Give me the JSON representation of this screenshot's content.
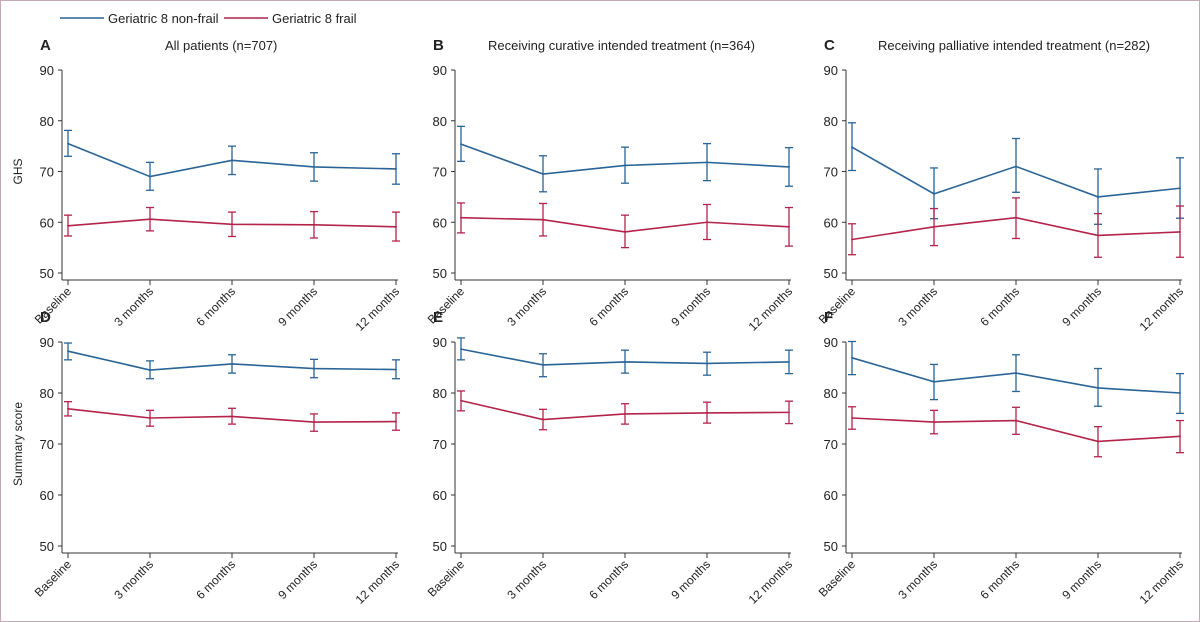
{
  "legend": [
    {
      "name": "Geriatric 8 non-frail",
      "color": "#2a6496"
    },
    {
      "name": "Geriatric 8 frail",
      "color": "#b3234b"
    }
  ],
  "chart_data": [
    {
      "type": "line",
      "panel": "A",
      "subtitle": "All patients (n=707)",
      "categories": [
        "Baseline",
        "3 months",
        "6 months",
        "9 months",
        "12 months"
      ],
      "ylabel": "GHS",
      "ylim": [
        50,
        90
      ],
      "yticks": [
        50,
        60,
        70,
        80,
        90
      ],
      "series": [
        {
          "name": "Geriatric 8 non-frail",
          "values": [
            75.5,
            69.0,
            72.2,
            70.9,
            70.5
          ],
          "lower": [
            73.0,
            66.3,
            69.4,
            68.1,
            67.5
          ],
          "upper": [
            78.1,
            71.8,
            75.0,
            73.7,
            73.5
          ]
        },
        {
          "name": "Geriatric 8 frail",
          "values": [
            59.3,
            60.6,
            59.6,
            59.5,
            59.1
          ],
          "lower": [
            57.3,
            58.3,
            57.2,
            56.9,
            56.3
          ],
          "upper": [
            61.4,
            62.9,
            62.0,
            62.1,
            62.0
          ]
        }
      ]
    },
    {
      "type": "line",
      "panel": "B",
      "subtitle": "Receiving curative intended treatment (n=364)",
      "categories": [
        "Baseline",
        "3 months",
        "6 months",
        "9 months",
        "12 months"
      ],
      "ylabel": "",
      "ylim": [
        50,
        90
      ],
      "yticks": [
        50,
        60,
        70,
        80,
        90
      ],
      "series": [
        {
          "name": "Geriatric 8 non-frail",
          "values": [
            75.4,
            69.5,
            71.2,
            71.8,
            70.9
          ],
          "lower": [
            72.0,
            66.0,
            67.7,
            68.2,
            67.1
          ],
          "upper": [
            78.9,
            73.1,
            74.8,
            75.5,
            74.7
          ]
        },
        {
          "name": "Geriatric 8 frail",
          "values": [
            60.9,
            60.5,
            58.1,
            60.0,
            59.1
          ],
          "lower": [
            57.9,
            57.3,
            55.0,
            56.6,
            55.3
          ],
          "upper": [
            63.8,
            63.7,
            61.4,
            63.5,
            62.9
          ]
        }
      ]
    },
    {
      "type": "line",
      "panel": "C",
      "subtitle": "Receiving palliative intended treatment (n=282)",
      "categories": [
        "Baseline",
        "3 months",
        "6 months",
        "9 months",
        "12 months"
      ],
      "ylabel": "",
      "ylim": [
        50,
        90
      ],
      "yticks": [
        50,
        60,
        70,
        80,
        90
      ],
      "series": [
        {
          "name": "Geriatric 8 non-frail",
          "values": [
            74.8,
            65.6,
            71.0,
            65.0,
            66.7
          ],
          "lower": [
            70.2,
            60.7,
            65.9,
            59.6,
            60.8
          ],
          "upper": [
            79.6,
            70.7,
            76.5,
            70.5,
            72.7
          ]
        },
        {
          "name": "Geriatric 8 frail",
          "values": [
            56.6,
            59.1,
            60.9,
            57.4,
            58.1
          ],
          "lower": [
            53.6,
            55.4,
            56.8,
            53.1,
            53.1
          ],
          "upper": [
            59.7,
            62.7,
            64.8,
            61.7,
            63.2
          ]
        }
      ]
    },
    {
      "type": "line",
      "panel": "D",
      "subtitle": "",
      "categories": [
        "Baseline",
        "3 months",
        "6 months",
        "9 months",
        "12 months"
      ],
      "ylabel": "Summary score",
      "ylim": [
        50,
        90
      ],
      "yticks": [
        50,
        60,
        70,
        80,
        90
      ],
      "series": [
        {
          "name": "Geriatric 8 non-frail",
          "values": [
            88.2,
            84.5,
            85.7,
            84.8,
            84.6
          ],
          "lower": [
            86.5,
            82.8,
            83.9,
            83.0,
            82.8
          ],
          "upper": [
            89.8,
            86.3,
            87.5,
            86.6,
            86.5
          ]
        },
        {
          "name": "Geriatric 8 frail",
          "values": [
            76.9,
            75.1,
            75.4,
            74.3,
            74.4
          ],
          "lower": [
            75.5,
            73.5,
            73.9,
            72.5,
            72.7
          ],
          "upper": [
            78.3,
            76.6,
            77.0,
            75.9,
            76.1
          ]
        }
      ]
    },
    {
      "type": "line",
      "panel": "E",
      "subtitle": "",
      "categories": [
        "Baseline",
        "3 months",
        "6 months",
        "9 months",
        "12 months"
      ],
      "ylabel": "",
      "ylim": [
        50,
        90
      ],
      "yticks": [
        50,
        60,
        70,
        80,
        90
      ],
      "series": [
        {
          "name": "Geriatric 8 non-frail",
          "values": [
            88.6,
            85.5,
            86.1,
            85.8,
            86.1
          ],
          "lower": [
            86.5,
            83.2,
            83.9,
            83.5,
            83.8
          ],
          "upper": [
            90.8,
            87.7,
            88.4,
            88.0,
            88.4
          ]
        },
        {
          "name": "Geriatric 8 frail",
          "values": [
            78.5,
            74.8,
            75.9,
            76.1,
            76.2
          ],
          "lower": [
            76.5,
            72.8,
            73.9,
            74.1,
            74.0
          ],
          "upper": [
            80.4,
            76.8,
            77.9,
            78.2,
            78.4
          ]
        }
      ]
    },
    {
      "type": "line",
      "panel": "F",
      "subtitle": "",
      "categories": [
        "Baseline",
        "3 months",
        "6 months",
        "9 months",
        "12 months"
      ],
      "ylabel": "",
      "ylim": [
        50,
        90
      ],
      "yticks": [
        50,
        60,
        70,
        80,
        90
      ],
      "series": [
        {
          "name": "Geriatric 8 non-frail",
          "values": [
            86.9,
            82.2,
            83.9,
            81.0,
            80.0
          ],
          "lower": [
            83.6,
            78.7,
            80.3,
            77.4,
            76.0
          ],
          "upper": [
            90.1,
            85.6,
            87.5,
            84.8,
            83.8
          ]
        },
        {
          "name": "Geriatric 8 frail",
          "values": [
            75.1,
            74.3,
            74.6,
            70.5,
            71.5
          ],
          "lower": [
            72.9,
            72.0,
            71.9,
            67.5,
            68.3
          ],
          "upper": [
            77.3,
            76.6,
            77.2,
            73.4,
            74.6
          ]
        }
      ]
    }
  ]
}
